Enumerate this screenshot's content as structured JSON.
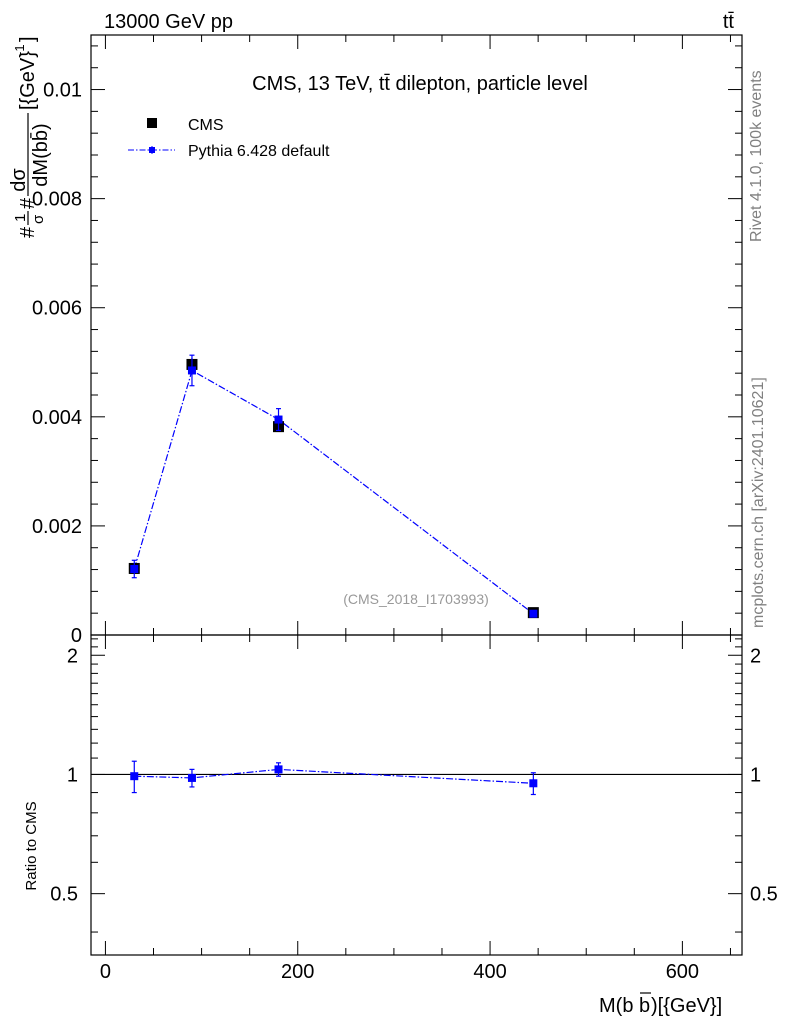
{
  "header": {
    "left": "13000 GeV pp",
    "right": "tt̄"
  },
  "side_labels": {
    "rivet": "Rivet 4.1.0,  100k events",
    "mcplots": "mcplots.cern.ch [arXiv:2401.10621]"
  },
  "chart_data": [
    {
      "type": "scatter",
      "title": "CMS, 13 TeV, tt̄ dilepton, particle level",
      "watermark": "(CMS_2018_I1703993)",
      "ylabel": "#frac{1}{#sigma}#frac{dσ}{dM(bb̄)}[{GeV}^{-1}]",
      "ylabel_parts": {
        "lhs": "#",
        "one": "1",
        "sigma": "σ",
        "hash": "#",
        "dsigma": "dσ",
        "dm": "dM(bb̄)",
        "unit": "[{GeV}",
        "exp": "-1",
        "close": "]"
      },
      "xlim": [
        -15,
        662
      ],
      "ylim": [
        0,
        0.011
      ],
      "y_ticks": [
        {
          "value": 0,
          "label": "0"
        },
        {
          "value": 0.002,
          "label": "0.002"
        },
        {
          "value": 0.004,
          "label": "0.004"
        },
        {
          "value": 0.006,
          "label": "0.006"
        },
        {
          "value": 0.008,
          "label": "0.008"
        },
        {
          "value": 0.01,
          "label": "0.01"
        }
      ],
      "legend": {
        "placement": "top-left",
        "entries": [
          "CMS",
          "Pythia 6.428 default"
        ]
      },
      "series": [
        {
          "name": "CMS",
          "color": "#000000",
          "x": [
            30,
            90,
            180,
            445
          ],
          "y": [
            0.00122,
            0.00496,
            0.00382,
            0.00041
          ],
          "yerr": [
            6e-05,
            0.00012,
            8e-05,
            2e-05
          ]
        },
        {
          "name": "Pythia 6.428 default",
          "color": "#0000ff",
          "x": [
            30,
            90,
            180,
            445
          ],
          "y": [
            0.00121,
            0.00485,
            0.00395,
            0.00039
          ],
          "yerr": [
            0.00016,
            0.00028,
            0.0002,
            3e-05
          ]
        }
      ]
    },
    {
      "type": "scatter",
      "ylabel": "Ratio to CMS",
      "xlabel": "M(bb̄)[{GeV}]",
      "xlabel_parts": {
        "base": "M(b",
        "bbar": "b",
        "tail": ")[{GeV}]"
      },
      "xlim": [
        -15,
        662
      ],
      "ylim": [
        0.35,
        2.25
      ],
      "reference_line": 1,
      "y_ticks": [
        {
          "value": 0.5,
          "label": "0.5"
        },
        {
          "value": 1,
          "label": "1"
        },
        {
          "value": 2,
          "label": "2"
        }
      ],
      "x_ticks": [
        {
          "value": 0,
          "label": "0"
        },
        {
          "value": 200,
          "label": "200"
        },
        {
          "value": 400,
          "label": "400"
        },
        {
          "value": 600,
          "label": "600"
        }
      ],
      "series": [
        {
          "name": "Pythia 6.428 default",
          "color": "#0000ff",
          "x": [
            30,
            90,
            180,
            445
          ],
          "y": [
            0.99,
            0.98,
            1.03,
            0.95
          ],
          "yerr": [
            0.09,
            0.05,
            0.04,
            0.06
          ]
        }
      ]
    }
  ]
}
